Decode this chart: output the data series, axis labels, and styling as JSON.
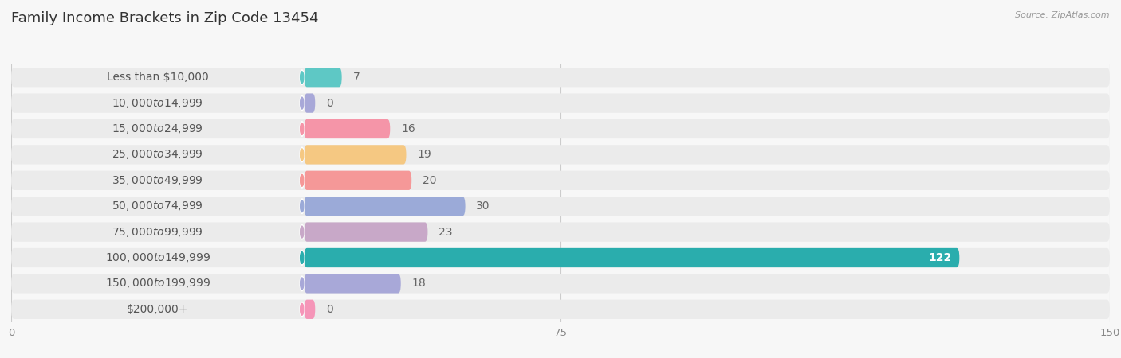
{
  "title": "Family Income Brackets in Zip Code 13454",
  "source": "Source: ZipAtlas.com",
  "categories": [
    "Less than $10,000",
    "$10,000 to $14,999",
    "$15,000 to $24,999",
    "$25,000 to $34,999",
    "$35,000 to $49,999",
    "$50,000 to $74,999",
    "$75,000 to $99,999",
    "$100,000 to $149,999",
    "$150,000 to $199,999",
    "$200,000+"
  ],
  "values": [
    7,
    0,
    16,
    19,
    20,
    30,
    23,
    122,
    18,
    0
  ],
  "bar_colors": [
    "#5EC8C5",
    "#A8A8D8",
    "#F595A8",
    "#F5C882",
    "#F59898",
    "#9BAAD8",
    "#C8A8C8",
    "#2AADAD",
    "#A8A8D8",
    "#F595B8"
  ],
  "xlim_data": [
    0,
    150
  ],
  "xticks": [
    0,
    75,
    150
  ],
  "background_color": "#f7f7f7",
  "row_bg_color": "#ebebeb",
  "title_fontsize": 13,
  "label_fontsize": 10,
  "value_fontsize": 10
}
